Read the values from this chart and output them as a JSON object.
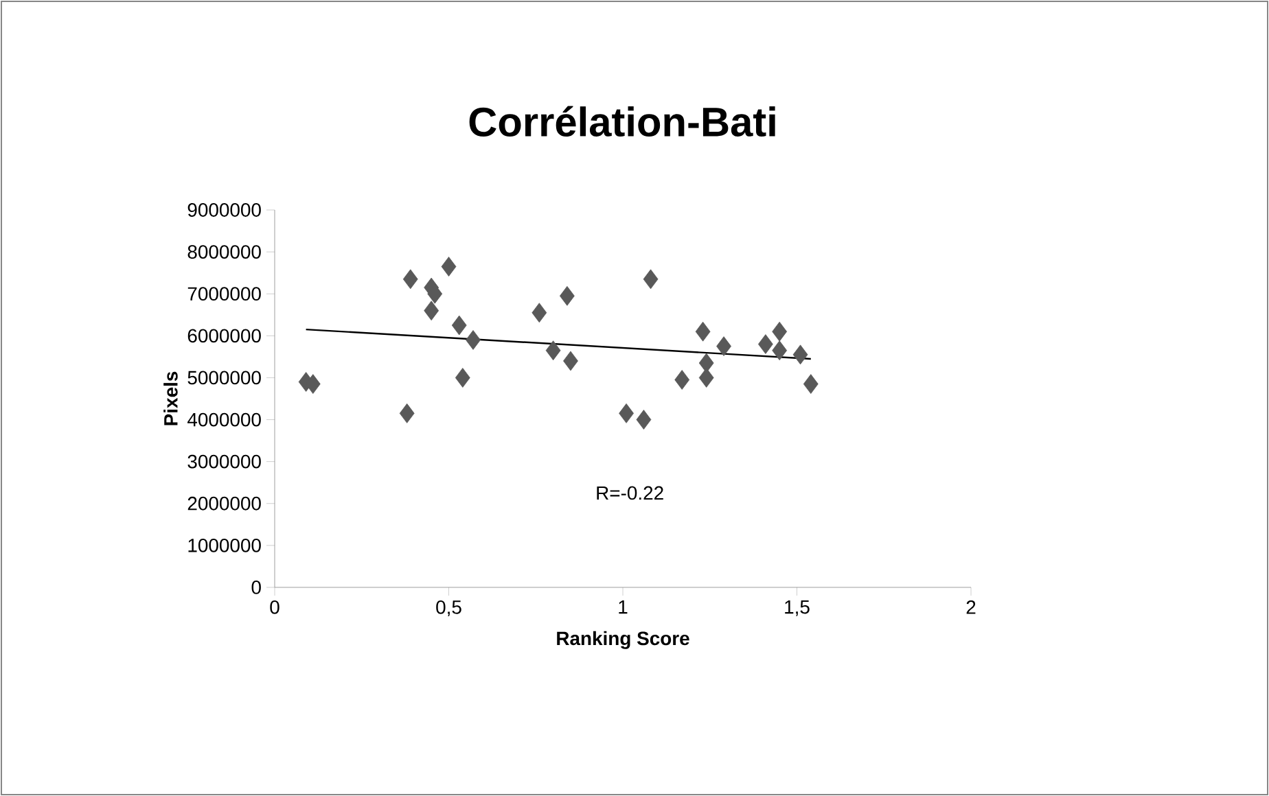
{
  "chart_data": {
    "type": "scatter",
    "title": "Corrélation-Bati",
    "xlabel": "Ranking Score",
    "ylabel": "Pixels",
    "xlim": [
      0,
      2
    ],
    "xticks": [
      0,
      {
        "value": 0.5,
        "label": "0,5"
      },
      1,
      {
        "value": 1.5,
        "label": "1,5"
      },
      2
    ],
    "ylim": [
      0,
      9000000
    ],
    "yticks": [
      0,
      1000000,
      2000000,
      3000000,
      4000000,
      5000000,
      6000000,
      7000000,
      8000000,
      9000000
    ],
    "marker": "diamond",
    "annotations": [
      "R=-0.22"
    ],
    "series": [
      {
        "color": "#595959",
        "x": [
          0.09,
          0.11,
          0.38,
          0.39,
          0.45,
          0.46,
          0.45,
          0.5,
          0.53,
          0.57,
          0.54,
          0.76,
          0.84,
          0.8,
          0.85,
          1.01,
          1.06,
          1.08,
          1.17,
          1.23,
          1.24,
          1.24,
          1.29,
          1.41,
          1.45,
          1.45,
          1.51,
          1.54
        ],
        "values": [
          4900000,
          4850000,
          4150000,
          7350000,
          7150000,
          7000000,
          6600000,
          7650000,
          6250000,
          5900000,
          5000000,
          6550000,
          6950000,
          5650000,
          5400000,
          4150000,
          4000000,
          7350000,
          4950000,
          6100000,
          5350000,
          5000000,
          5750000,
          5800000,
          6100000,
          5650000,
          5550000,
          4850000
        ]
      },
      {
        "type": "line",
        "color": "#000000",
        "marker": "none",
        "x": [
          0.09,
          1.54
        ],
        "values": [
          6150000,
          5450000
        ]
      }
    ]
  }
}
